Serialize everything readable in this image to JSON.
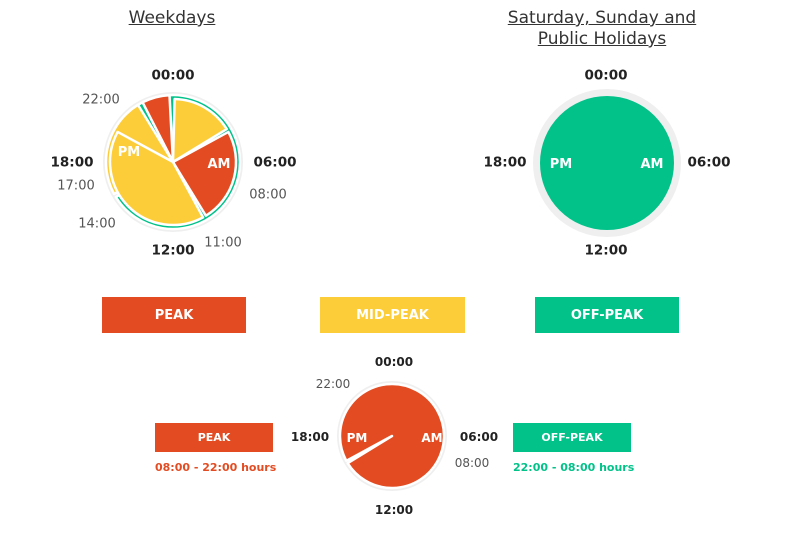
{
  "colors": {
    "peak": "#e34c22",
    "mid_peak": "#fccd38",
    "off_peak": "#02c28a",
    "ring": "#efefef"
  },
  "weekdays": {
    "title": "Weekdays",
    "hour_labels": {
      "h00": "00:00",
      "h06": "06:00",
      "h12": "12:00",
      "h18": "18:00",
      "h22": "22:00",
      "h17": "17:00",
      "h14": "14:00",
      "h08": "08:00",
      "h11": "11:00"
    },
    "am_label": "AM",
    "pm_label": "PM",
    "segments": [
      {
        "tariff": "off_peak",
        "start_hour": 22,
        "end_hour": 8,
        "clock": "am"
      },
      {
        "tariff": "mid_peak",
        "start_hour": 8,
        "end_hour": 11,
        "clock": "am"
      },
      {
        "tariff": "peak",
        "start_hour": 11,
        "end_hour": 12,
        "clock": "am"
      },
      {
        "tariff": "mid_peak",
        "start_hour": 12,
        "end_hour": 14,
        "clock": "pm"
      },
      {
        "tariff": "peak",
        "start_hour": 14,
        "end_hour": 17,
        "clock": "pm"
      },
      {
        "tariff": "mid_peak",
        "start_hour": 17,
        "end_hour": 22,
        "clock": "pm"
      }
    ]
  },
  "weekend": {
    "title_line1": "Saturday, Sunday and",
    "title_line2": "Public Holidays",
    "hour_labels": {
      "h00": "00:00",
      "h06": "06:00",
      "h12": "12:00",
      "h18": "18:00"
    },
    "am_label": "AM",
    "pm_label": "PM",
    "tariff": "off_peak"
  },
  "legend": {
    "peak": "PEAK",
    "mid_peak": "MID-PEAK",
    "off_peak": "OFF-PEAK"
  },
  "alt": {
    "hour_labels": {
      "h00": "00:00",
      "h06": "06:00",
      "h12": "12:00",
      "h18": "18:00",
      "h22": "22:00",
      "h08": "08:00"
    },
    "am_label": "AM",
    "pm_label": "PM",
    "segments": [
      {
        "tariff": "off_peak",
        "start_hour": 22,
        "end_hour": 8
      },
      {
        "tariff": "peak",
        "start_hour": 8,
        "end_hour": 22
      }
    ],
    "peak_label": "PEAK",
    "peak_hours": "08:00 - 22:00 hours",
    "off_peak_label": "OFF-PEAK",
    "off_peak_hours": "22:00 - 08:00 hours"
  }
}
